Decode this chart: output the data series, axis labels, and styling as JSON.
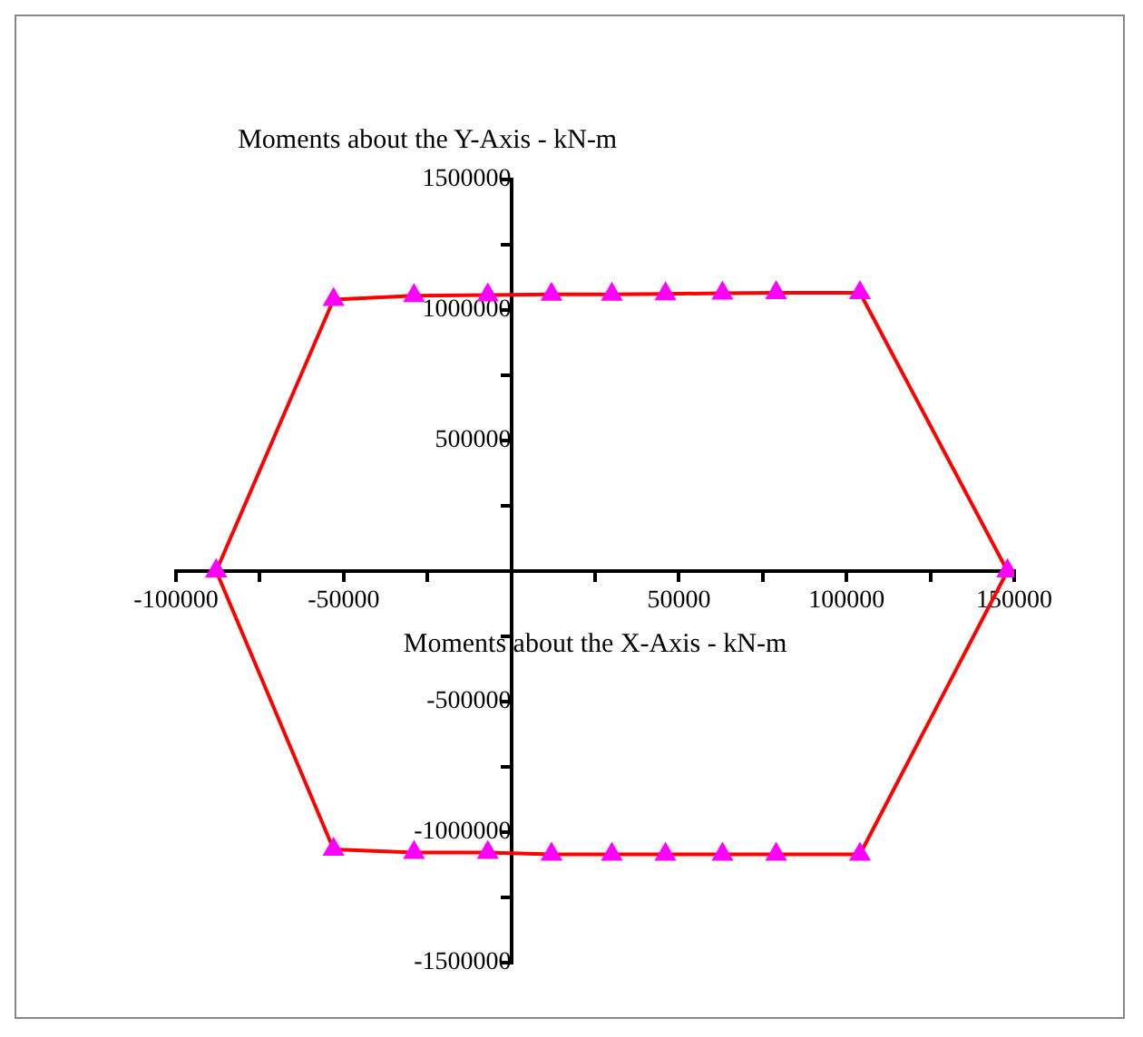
{
  "chart_data": {
    "type": "line",
    "xlabel": "Moments about the X-Axis - kN-m",
    "ylabel": "Moments about the Y-Axis - kN-m",
    "series": [
      {
        "color": "#ff0000",
        "colors": [
          "#ff00ff",
          "#ff00ff",
          "#ff00ff",
          "#ff00ff",
          "#ff00ff",
          "#ff00ff",
          "#ff00ff",
          "#ff00ff",
          "#ff00ff",
          "#ff00ff",
          "#ff00ff"
        ],
        "x": [
          -88000,
          -53000,
          -29000,
          -7000,
          12000,
          30000,
          46000,
          63000,
          79000,
          104000,
          148000
        ],
        "values": [
          0,
          1040000,
          1055000,
          1057000,
          1060000,
          1060000,
          1062000,
          1064000,
          1066000,
          1066000,
          0
        ]
      },
      {
        "color": "#ff0000",
        "colors": [
          "#ff00ff",
          "#ff00ff",
          "#ff00ff",
          "#ff00ff",
          "#ff00ff",
          "#ff00ff",
          "#ff00ff",
          "#ff00ff",
          "#ff00ff",
          "#ff00ff",
          "#ff00ff"
        ],
        "x": [
          -88000,
          -53000,
          -29000,
          -7000,
          12000,
          30000,
          46000,
          63000,
          79000,
          104000,
          148000
        ],
        "values": [
          0,
          -1066000,
          -1078000,
          -1078000,
          -1085000,
          -1085000,
          -1085000,
          -1085000,
          -1085000,
          -1085000,
          0
        ]
      }
    ],
    "marker": "triangle",
    "line_style": "solid",
    "legend": false,
    "grid": false,
    "xlim": [
      -100000,
      150000
    ],
    "xticks": [
      -100000,
      {
        "value": -75000,
        "label": null
      },
      -50000,
      {
        "value": -25000,
        "label": null
      },
      {
        "value": 0,
        "label": null
      },
      {
        "value": 25000,
        "label": null
      },
      50000,
      {
        "value": 75000,
        "label": null
      },
      100000,
      {
        "value": 125000,
        "label": null
      },
      150000
    ],
    "ylim": [
      -1500000,
      1500000
    ],
    "yticks": [
      -1500000,
      {
        "value": -1250000,
        "label": null
      },
      -1000000,
      {
        "value": -750000,
        "label": null
      },
      -500000,
      {
        "value": -250000,
        "label": null
      },
      {
        "value": 0,
        "label": null
      },
      {
        "value": 250000,
        "label": null
      },
      500000,
      {
        "value": 750000,
        "label": null
      },
      1000000,
      {
        "value": 1250000,
        "label": null
      },
      1500000
    ]
  }
}
